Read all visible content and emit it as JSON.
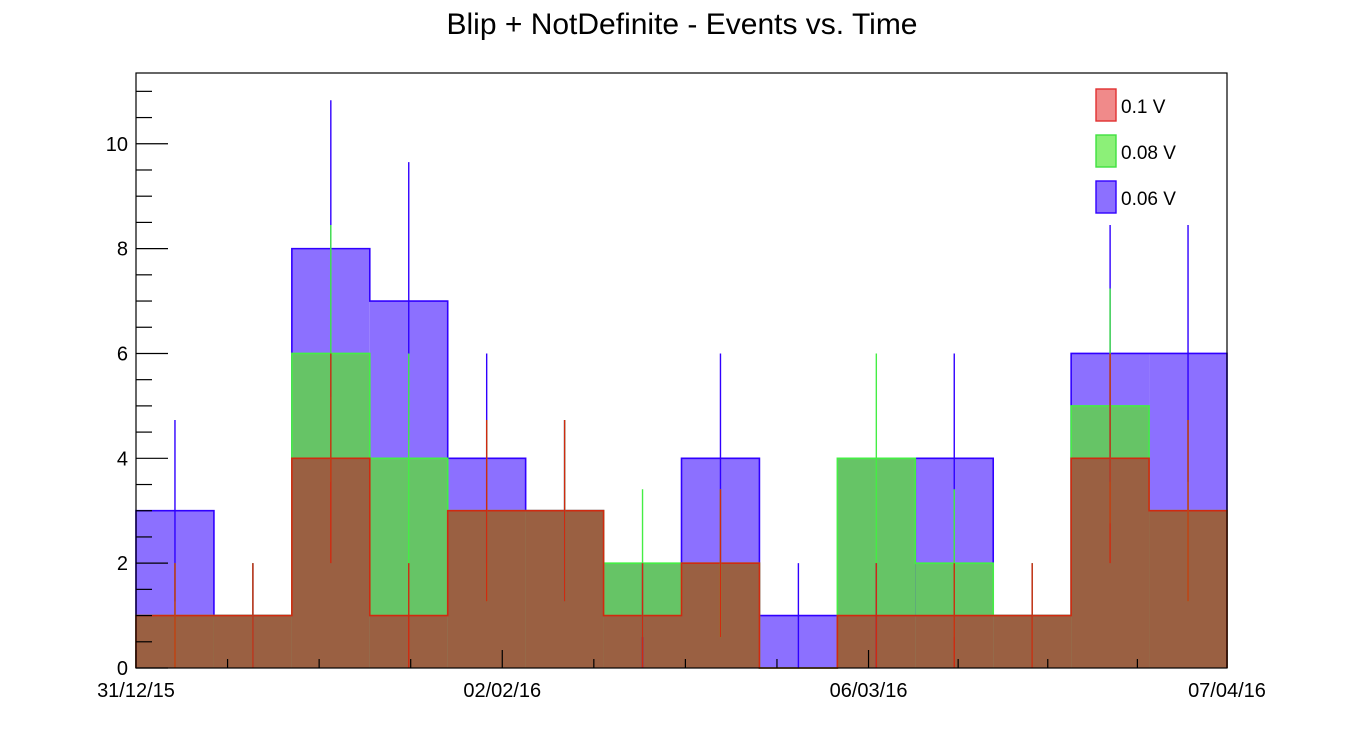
{
  "chart_data": {
    "type": "bar",
    "title": "Blip + NotDefinite - Events vs. Time",
    "xlabel": "",
    "ylabel": "",
    "ylim": [
      0,
      11.35
    ],
    "y_ticks": [
      0,
      2,
      4,
      6,
      8,
      10
    ],
    "x_tick_labels": [
      "31/12/15",
      "02/02/16",
      "06/03/16",
      "07/04/16"
    ],
    "x_tick_bin_positions": [
      0,
      4.7,
      9.4,
      14
    ],
    "bins": 14,
    "grid": false,
    "legend_position": "top-right",
    "series": [
      {
        "name": "0.06 V",
        "fill": "#8c70ff",
        "line": "#3000ff",
        "values": [
          3,
          1,
          8,
          7,
          4,
          3,
          1,
          4,
          1,
          1,
          4,
          1,
          6,
          6
        ],
        "errors": [
          1.73,
          1,
          2.83,
          2.65,
          2,
          1.73,
          1,
          2,
          1,
          1,
          2,
          1,
          2.45,
          2.45
        ]
      },
      {
        "name": "0.08 V",
        "fill": "#66c466",
        "line": "#44ee44",
        "values": [
          1,
          1,
          6,
          4,
          3,
          3,
          2,
          2,
          0,
          4,
          2,
          1,
          5,
          3
        ],
        "errors": [
          1,
          1,
          2.45,
          2,
          1.73,
          1.73,
          1.41,
          1.41,
          0,
          2,
          1.41,
          1,
          2.24,
          1.73
        ]
      },
      {
        "name": "0.1 V",
        "fill": "#9a6042",
        "line": "#d02a10",
        "values": [
          1,
          1,
          4,
          1,
          3,
          3,
          1,
          2,
          0,
          1,
          1,
          1,
          4,
          3
        ],
        "errors": [
          1,
          1,
          2,
          1,
          1.73,
          1.73,
          1,
          1.41,
          0,
          1,
          1,
          1,
          2,
          1.73
        ]
      }
    ],
    "legend": [
      {
        "label": "0.1 V",
        "color": "#f08a8a",
        "border": "#e03030"
      },
      {
        "label": "0.08 V",
        "color": "#8cf078",
        "border": "#40e040"
      },
      {
        "label": "0.06 V",
        "color": "#8c70ff",
        "border": "#3000ff"
      }
    ]
  }
}
